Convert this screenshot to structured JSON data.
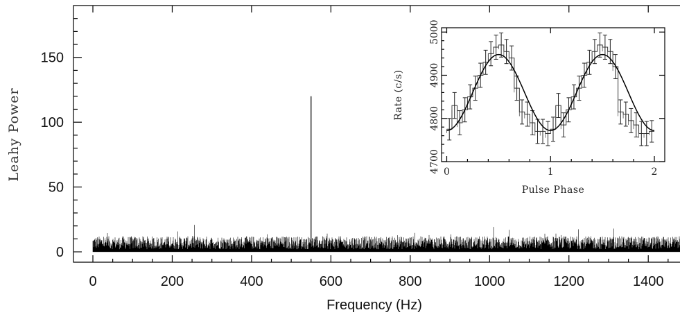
{
  "chart_data": [
    {
      "type": "line",
      "xlabel": "Frequency (Hz)",
      "ylabel": "Leahy Power",
      "xlim": [
        0,
        1480
      ],
      "ylim": [
        -8,
        190
      ],
      "x_ticks": [
        0,
        200,
        400,
        600,
        800,
        1000,
        1200,
        1400
      ],
      "y_ticks": [
        0,
        50,
        100,
        150
      ],
      "noise_floor": {
        "x_range": [
          0,
          1480
        ],
        "typical_power": [
          2,
          12
        ],
        "max_power": 22
      },
      "peaks": [
        {
          "x": 550,
          "y": 120
        }
      ]
    },
    {
      "type": "line",
      "xlabel": "Pulse Phase",
      "ylabel": "Rate (c/s)",
      "xlim": [
        -0.05,
        2.1
      ],
      "ylim": [
        4700,
        5010
      ],
      "x_ticks": [
        0,
        1,
        2
      ],
      "y_ticks": [
        4700,
        4800,
        4900,
        5000
      ],
      "series": [
        {
          "style": "histogram",
          "x": [
            0.025,
            0.075,
            0.125,
            0.175,
            0.225,
            0.275,
            0.325,
            0.375,
            0.425,
            0.475,
            0.525,
            0.575,
            0.625,
            0.675,
            0.725,
            0.775,
            0.825,
            0.875,
            0.925,
            0.975,
            1.025,
            1.075,
            1.125,
            1.175,
            1.225,
            1.275,
            1.325,
            1.375,
            1.425,
            1.475,
            1.525,
            1.575,
            1.625,
            1.675,
            1.725,
            1.775,
            1.825,
            1.875,
            1.925,
            1.975
          ],
          "values": [
            4775,
            4830,
            4790,
            4820,
            4850,
            4870,
            4900,
            4930,
            4950,
            4965,
            4970,
            4955,
            4940,
            4870,
            4815,
            4810,
            4790,
            4770,
            4770,
            4765,
            4775,
            4830,
            4785,
            4820,
            4850,
            4870,
            4900,
            4930,
            4955,
            4970,
            4965,
            4955,
            4920,
            4815,
            4810,
            4795,
            4785,
            4765,
            4765,
            4770
          ],
          "errors": [
            25,
            30,
            28,
            28,
            28,
            28,
            28,
            28,
            28,
            28,
            28,
            28,
            28,
            28,
            28,
            28,
            28,
            28,
            28,
            28,
            28,
            28,
            28,
            28,
            28,
            28,
            28,
            28,
            28,
            28,
            28,
            28,
            28,
            28,
            28,
            28,
            28,
            28,
            28,
            25
          ]
        },
        {
          "style": "model-curve",
          "model": "sinusoid",
          "mean": 4860,
          "amplitude": 88,
          "peak_phase": 0.5,
          "harmonics": 2
        }
      ]
    }
  ]
}
